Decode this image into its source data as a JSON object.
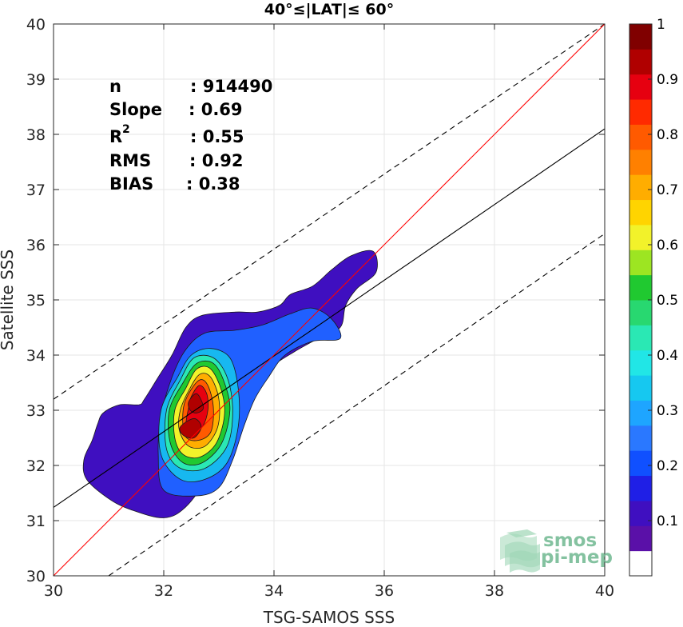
{
  "chart_data": {
    "type": "contour",
    "title": "40°≤|LAT|≤ 60°",
    "xlabel": "TSG-SAMOS SSS",
    "ylabel": "Satellite SSS",
    "xlim": [
      30,
      40
    ],
    "ylim": [
      30,
      40
    ],
    "xticks": [
      30,
      32,
      34,
      36,
      38,
      40
    ],
    "yticks": [
      30,
      31,
      32,
      33,
      34,
      35,
      36,
      37,
      38,
      39,
      40
    ],
    "grid": true,
    "stats": [
      {
        "label": "n",
        "value": ": 914490"
      },
      {
        "label": "Slope",
        "value": ": 0.69"
      },
      {
        "label": "R",
        "sup": "2",
        "value": ": 0.55"
      },
      {
        "label": "RMS",
        "value": ": 0.92"
      },
      {
        "label": "BIAS",
        "value": ": 0.38"
      }
    ],
    "lines": {
      "identity": {
        "color": "#ff0000",
        "points": [
          [
            30,
            30
          ],
          [
            40,
            40
          ]
        ]
      },
      "fit": {
        "color": "#000000",
        "points": [
          [
            30,
            31.24
          ],
          [
            40,
            38.1
          ]
        ]
      },
      "upper_dashed": {
        "color": "#000000",
        "points": [
          [
            30,
            33.2
          ],
          [
            40,
            40
          ]
        ]
      },
      "lower_dashed": {
        "color": "#000000",
        "points": [
          [
            31,
            30
          ],
          [
            40,
            36.2
          ]
        ]
      }
    },
    "contours": [
      {
        "level": 0.05,
        "color": "#3f0fc0",
        "points": [
          [
            30.55,
            32.1
          ],
          [
            30.7,
            32.45
          ],
          [
            30.8,
            32.75
          ],
          [
            30.9,
            32.95
          ],
          [
            31.2,
            33.1
          ],
          [
            31.55,
            33.1
          ],
          [
            31.65,
            33.2
          ],
          [
            31.9,
            33.6
          ],
          [
            32.15,
            34
          ],
          [
            32.4,
            34.5
          ],
          [
            32.7,
            34.72
          ],
          [
            33.3,
            34.78
          ],
          [
            33.7,
            34.78
          ],
          [
            34.1,
            34.9
          ],
          [
            34.3,
            35.1
          ],
          [
            34.7,
            35.25
          ],
          [
            35.05,
            35.55
          ],
          [
            35.4,
            35.8
          ],
          [
            35.8,
            35.88
          ],
          [
            35.85,
            35.5
          ],
          [
            35.5,
            35.2
          ],
          [
            35.3,
            34.9
          ],
          [
            35.2,
            34.5
          ],
          [
            34.8,
            34.3
          ],
          [
            34.35,
            34.05
          ],
          [
            33.9,
            33.75
          ],
          [
            33.6,
            33.4
          ],
          [
            33.4,
            33
          ],
          [
            33.05,
            32.4
          ],
          [
            32.8,
            31.8
          ],
          [
            32.4,
            31.25
          ],
          [
            32,
            31.05
          ],
          [
            31.4,
            31.2
          ],
          [
            31,
            31.4
          ],
          [
            30.6,
            31.75
          ]
        ]
      },
      {
        "level": 0.2,
        "color": "#2060ff",
        "points": [
          [
            32.15,
            33.6
          ],
          [
            32.4,
            34.1
          ],
          [
            32.75,
            34.4
          ],
          [
            33.3,
            34.45
          ],
          [
            33.8,
            34.55
          ],
          [
            34.3,
            34.75
          ],
          [
            34.7,
            34.85
          ],
          [
            35.05,
            34.65
          ],
          [
            35.2,
            34.3
          ],
          [
            34.7,
            34.25
          ],
          [
            34.2,
            34
          ],
          [
            33.9,
            33.6
          ],
          [
            33.65,
            33.2
          ],
          [
            33.45,
            32.7
          ],
          [
            33.25,
            32.1
          ],
          [
            33,
            31.6
          ],
          [
            32.6,
            31.45
          ],
          [
            32,
            31.55
          ],
          [
            31.9,
            32.2
          ],
          [
            31.95,
            32.9
          ]
        ]
      },
      {
        "level": 0.3,
        "color": "#17b8f0",
        "points": [
          [
            32.25,
            33.6
          ],
          [
            32.5,
            34
          ],
          [
            32.85,
            34.12
          ],
          [
            33.2,
            33.95
          ],
          [
            33.35,
            33.4
          ],
          [
            33.35,
            32.7
          ],
          [
            33.15,
            32.05
          ],
          [
            32.75,
            31.75
          ],
          [
            32.3,
            31.75
          ],
          [
            31.95,
            32.2
          ],
          [
            31.95,
            33
          ]
        ]
      },
      {
        "level": 0.4,
        "color": "#2ae8b4",
        "points": [
          [
            32.3,
            33.55
          ],
          [
            32.55,
            33.95
          ],
          [
            32.9,
            33.95
          ],
          [
            33.15,
            33.6
          ],
          [
            33.25,
            33
          ],
          [
            33.15,
            32.35
          ],
          [
            32.75,
            31.95
          ],
          [
            32.3,
            31.95
          ],
          [
            32.05,
            32.3
          ],
          [
            32.05,
            33
          ]
        ]
      },
      {
        "level": 0.5,
        "color": "#20c930",
        "points": [
          [
            32.35,
            33.5
          ],
          [
            32.6,
            33.85
          ],
          [
            32.9,
            33.85
          ],
          [
            33.1,
            33.5
          ],
          [
            33.2,
            33
          ],
          [
            33.05,
            32.4
          ],
          [
            32.7,
            32.05
          ],
          [
            32.35,
            32.05
          ],
          [
            32.12,
            32.4
          ],
          [
            32.1,
            33
          ]
        ]
      },
      {
        "level": 0.6,
        "color": "#f2f22a",
        "points": [
          [
            32.4,
            33.4
          ],
          [
            32.6,
            33.75
          ],
          [
            32.85,
            33.75
          ],
          [
            33.05,
            33.35
          ],
          [
            33.1,
            32.9
          ],
          [
            32.95,
            32.4
          ],
          [
            32.65,
            32.15
          ],
          [
            32.35,
            32.2
          ],
          [
            32.2,
            32.5
          ],
          [
            32.2,
            33
          ]
        ]
      },
      {
        "level": 0.7,
        "color": "#ffad00",
        "points": [
          [
            32.45,
            33.35
          ],
          [
            32.65,
            33.65
          ],
          [
            32.85,
            33.6
          ],
          [
            33,
            33.2
          ],
          [
            32.98,
            32.7
          ],
          [
            32.75,
            32.35
          ],
          [
            32.45,
            32.35
          ],
          [
            32.28,
            32.65
          ],
          [
            32.3,
            33
          ]
        ]
      },
      {
        "level": 0.8,
        "color": "#ff5a00",
        "points": [
          [
            32.45,
            33.3
          ],
          [
            32.65,
            33.55
          ],
          [
            32.8,
            33.45
          ],
          [
            32.9,
            33.05
          ],
          [
            32.85,
            32.6
          ],
          [
            32.6,
            32.45
          ],
          [
            32.38,
            32.55
          ],
          [
            32.35,
            33.0
          ]
        ]
      },
      {
        "level": 0.9,
        "color": "#e60010",
        "points": [
          [
            32.5,
            33.25
          ],
          [
            32.65,
            33.45
          ],
          [
            32.78,
            33.3
          ],
          [
            32.8,
            33.0
          ],
          [
            32.7,
            32.7
          ],
          [
            32.5,
            32.55
          ],
          [
            32.4,
            32.7
          ],
          [
            32.45,
            33.05
          ]
        ]
      },
      {
        "level": 0.95,
        "color": "#b00000",
        "points": [
          [
            32.45,
            33.15
          ],
          [
            32.6,
            33.3
          ],
          [
            32.72,
            33.05
          ],
          [
            32.6,
            32.95
          ],
          [
            32.48,
            33.0
          ]
        ]
      },
      {
        "level": 0.95,
        "color": "#b00000",
        "points": [
          [
            32.3,
            32.7
          ],
          [
            32.55,
            32.85
          ],
          [
            32.68,
            32.7
          ],
          [
            32.55,
            32.5
          ],
          [
            32.35,
            32.55
          ]
        ]
      }
    ],
    "colorbar": {
      "range": [
        0,
        1
      ],
      "ticks": [
        0.1,
        0.2,
        0.3,
        0.4,
        0.5,
        0.6,
        0.7,
        0.8,
        0.9,
        1
      ],
      "tick_labels": [
        "0.1",
        "0.2",
        "0.3",
        "0.4",
        "0.5",
        "0.6",
        "0.7",
        "0.8",
        "0.9",
        "1"
      ],
      "colors": [
        "#ffffff",
        "#5a10a8",
        "#3f0fc0",
        "#1f1fe6",
        "#1050ff",
        "#2a78ff",
        "#1ea5ff",
        "#16c8f0",
        "#21e6e6",
        "#2ae8b4",
        "#28d870",
        "#20c930",
        "#9de522",
        "#f2f22a",
        "#ffd400",
        "#ffad00",
        "#ff8000",
        "#ff5a00",
        "#ff2a00",
        "#e60010",
        "#b00000",
        "#800000"
      ]
    }
  },
  "watermark": {
    "line1": "smos",
    "line2": "pi-mep"
  }
}
